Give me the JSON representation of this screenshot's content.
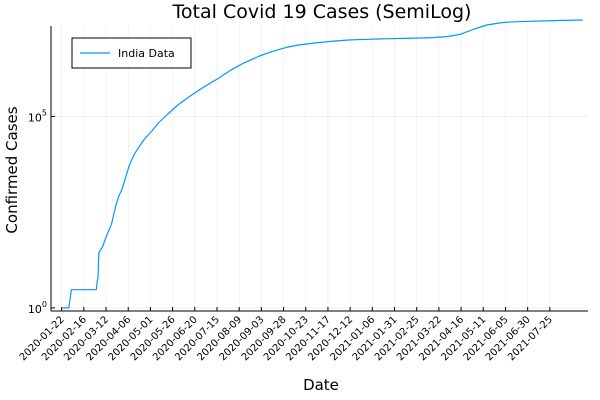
{
  "chart_data": {
    "type": "line",
    "title": "Total Covid 19 Cases (SemiLog)",
    "xlabel": "Date",
    "ylabel": "Confirmed Cases",
    "yscale": "log10",
    "xlim": [
      "2020-01-10",
      "2021-09-06"
    ],
    "ylim_log10": [
      -0.08,
      7.36
    ],
    "grid": true,
    "legend_position": "top-left",
    "x_tick_labels": [
      "2020-01-22",
      "2020-02-16",
      "2020-03-12",
      "2020-04-06",
      "2020-05-01",
      "2020-05-26",
      "2020-06-20",
      "2020-07-15",
      "2020-08-09",
      "2020-09-03",
      "2020-09-28",
      "2020-10-23",
      "2020-11-17",
      "2020-12-12",
      "2021-01-06",
      "2021-01-31",
      "2021-02-25",
      "2021-03-22",
      "2021-04-16",
      "2021-05-11",
      "2021-06-05",
      "2021-06-30",
      "2021-07-25"
    ],
    "y_ticks": [
      {
        "value": 1,
        "base": "10",
        "exp": "0"
      },
      {
        "value": 100000,
        "base": "10",
        "exp": "5"
      }
    ],
    "series": [
      {
        "name": "India Data",
        "color": "#009AFA",
        "x": [
          "2020-01-22",
          "2020-01-30",
          "2020-02-02",
          "2020-02-03",
          "2020-03-01",
          "2020-03-02",
          "2020-03-03",
          "2020-03-04",
          "2020-03-08",
          "2020-03-13",
          "2020-03-18",
          "2020-03-23",
          "2020-03-27",
          "2020-03-30",
          "2020-04-03",
          "2020-04-05",
          "2020-04-08",
          "2020-04-13",
          "2020-04-18",
          "2020-04-23",
          "2020-04-28",
          "2020-05-03",
          "2020-05-10",
          "2020-05-20",
          "2020-06-01",
          "2020-06-15",
          "2020-07-01",
          "2020-07-15",
          "2020-08-01",
          "2020-08-15",
          "2020-09-01",
          "2020-09-15",
          "2020-10-01",
          "2020-10-15",
          "2020-11-01",
          "2020-11-20",
          "2020-12-10",
          "2021-01-01",
          "2021-01-20",
          "2021-02-10",
          "2021-03-01",
          "2021-03-15",
          "2021-04-01",
          "2021-04-15",
          "2021-05-01",
          "2021-05-15",
          "2021-06-01",
          "2021-06-15",
          "2021-07-01",
          "2021-07-20",
          "2021-08-10",
          "2021-08-31"
        ],
        "values": [
          1,
          1,
          3,
          3,
          3,
          5,
          6,
          28,
          39,
          81,
          151,
          468,
          887,
          1251,
          2547,
          3588,
          5865,
          10363,
          15722,
          23452,
          31787,
          42533,
          67161,
          112028,
          198706,
          343091,
          604641,
          936181,
          1695988,
          2526192,
          3766108,
          4930236,
          6312584,
          7307097,
          8184082,
          9050597,
          9857029,
          10323965,
          10595660,
          10871294,
          11124527,
          11385339,
          12221665,
          13873825,
          19164969,
          24372907,
          28175044,
          29570881,
          30458251,
          31216337,
          32036511,
          32810845
        ]
      }
    ]
  }
}
